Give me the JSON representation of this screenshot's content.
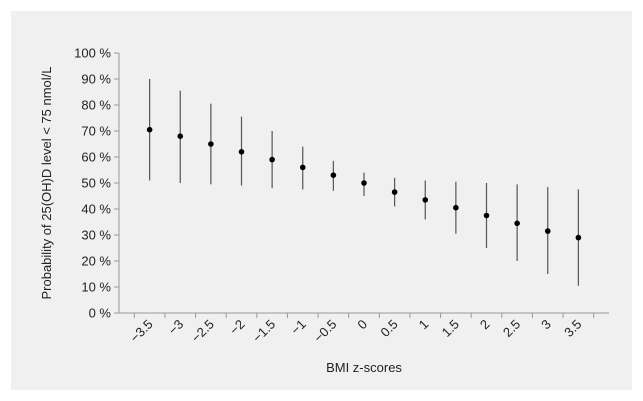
{
  "chart_data": {
    "type": "scatter",
    "title": "",
    "xlabel": "BMI z-scores",
    "ylabel": "Probability of 25(OH)D level < 75 nmol/L",
    "categories": [
      "−3.5",
      "−3",
      "−2.5",
      "−2",
      "−1.5",
      "−1",
      "−0.5",
      "0",
      "0.5",
      "1",
      "1.5",
      "2",
      "2.5",
      "3",
      "3.5"
    ],
    "values": [
      70.5,
      68,
      65,
      62,
      59,
      56,
      53,
      50,
      46.5,
      43.5,
      40.5,
      37.5,
      34.5,
      31.5,
      29
    ],
    "lower": [
      51,
      50,
      49.5,
      49,
      48,
      47.5,
      47,
      45,
      41,
      36,
      30.5,
      25,
      20,
      15,
      10.5
    ],
    "upper": [
      90,
      85.5,
      80.5,
      75.5,
      70,
      64,
      58.5,
      54,
      52,
      51,
      50.5,
      50,
      49.5,
      48.5,
      47.5
    ],
    "ylim": [
      0,
      100
    ],
    "yticks": [
      0,
      10,
      20,
      30,
      40,
      50,
      60,
      70,
      80,
      90,
      100
    ],
    "ytick_labels": [
      "0 %",
      "10 %",
      "20 %",
      "30 %",
      "40 %",
      "50 %",
      "60 %",
      "70 %",
      "80 %",
      "90 %",
      "100 %"
    ],
    "grid": false,
    "colors": {
      "background": "#f0f0f0",
      "marker": "#000000",
      "error_bar": "#555555",
      "axis": "#999999"
    }
  }
}
